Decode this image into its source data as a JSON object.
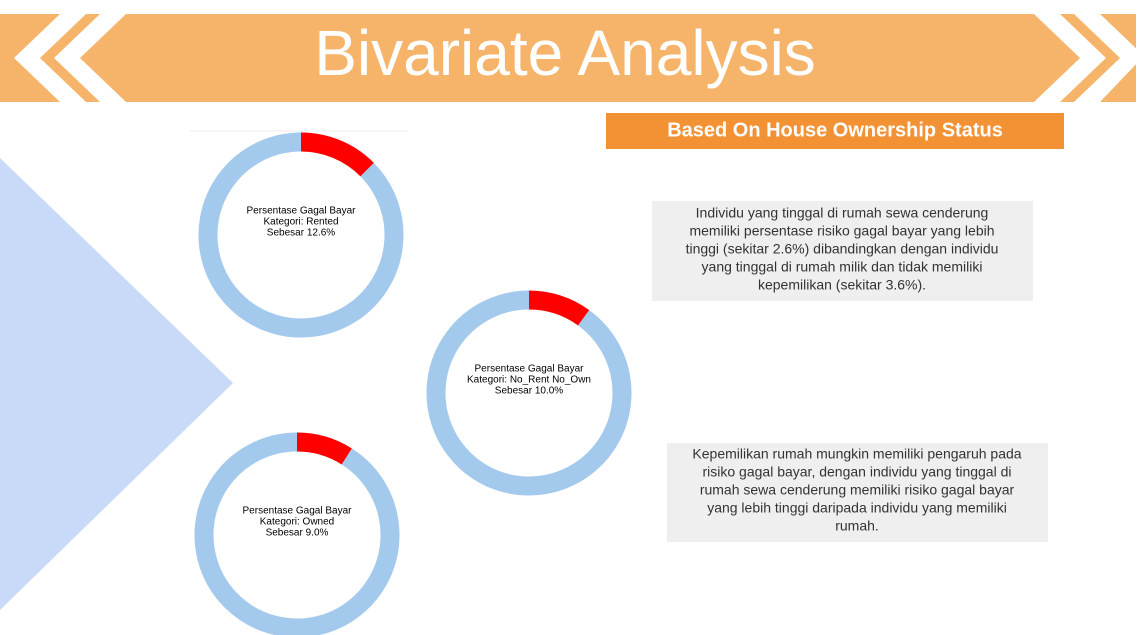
{
  "header": {
    "title": "Bivariate Analysis",
    "subtitle": "Based On House Ownership Status"
  },
  "notes": [
    {
      "lines": [
        "Individu yang tinggal di rumah sewa cenderung",
        "memiliki persentase risiko gagal bayar yang lebih",
        "tinggi (sekitar 2.6%) dibandingkan dengan individu",
        "yang tinggal di rumah milik  dan tidak memiliki",
        "kepemilikan (sekitar 3.6%)."
      ]
    },
    {
      "lines": [
        "Kepemilikan rumah mungkin memiliki pengaruh pada",
        "risiko gagal bayar, dengan individu yang tinggal di",
        "rumah sewa cenderung memiliki risiko gagal bayar",
        "yang lebih tinggi daripada individu yang memiliki",
        "rumah."
      ]
    }
  ],
  "chart_data": [
    {
      "type": "pie",
      "donut": true,
      "values": [
        12.6,
        87.4
      ],
      "colors": [
        "#ff0000",
        "#a3c9ec"
      ],
      "center_text": [
        "Persentase Gagal Bayar",
        "Kategori: Rented",
        "Sebesar 12.6%"
      ]
    },
    {
      "type": "pie",
      "donut": true,
      "values": [
        10.0,
        90.0
      ],
      "colors": [
        "#ff0000",
        "#a3c9ec"
      ],
      "center_text": [
        "Persentase Gagal Bayar",
        "Kategori: No_Rent No_Own",
        "Sebesar 10.0%"
      ]
    },
    {
      "type": "pie",
      "donut": true,
      "values": [
        9.0,
        91.0
      ],
      "colors": [
        "#ff0000",
        "#a3c9ec"
      ],
      "center_text": [
        "Persentase Gagal Bayar",
        "Kategori: Owned",
        "Sebesar 9.0%"
      ]
    }
  ]
}
